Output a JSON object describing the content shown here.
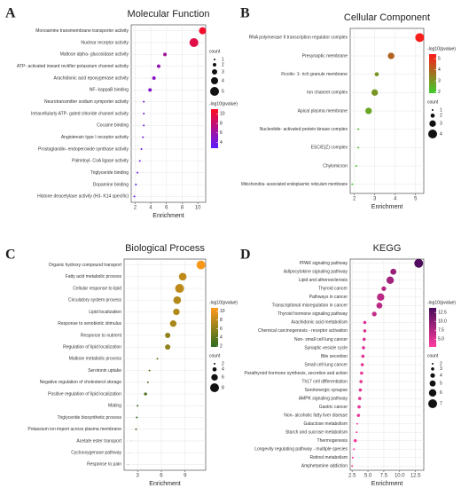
{
  "chart_data": [
    {
      "type": "bubble",
      "panel": "A",
      "title": "Molecular Function",
      "x_label": "Enrichment",
      "categories": [
        "Monoamine transmembrane transporter activity",
        "Nuclear receptor activity",
        "Maltose alpha- glucosidase activity",
        "ATP- activated inward rectifier potassium channel activity",
        "Arachidonic acid epoxygenase activity",
        "NF- kappaB binding",
        "Neurotransmitter sodium symporter activity",
        "Intracellularly ATP- gated chloride channel activity",
        "Cocaine binding",
        "Angiotensin type I receptor activity",
        "Prostaglandin- endoperoxide synthase activity",
        "Palmitoyl- CoA ligase activity",
        "Triglyceride binding",
        "Dopamine binding",
        "Histone deacetylase activity (H3- K14 specific)"
      ],
      "values": [
        10.6,
        9.5,
        5.8,
        5.0,
        4.4,
        3.9,
        3.1,
        3.1,
        3.1,
        3.0,
        2.8,
        2.6,
        2.3,
        2.1,
        1.9
      ],
      "sizes": [
        4,
        5,
        2,
        2,
        2,
        2,
        1,
        1,
        1,
        1,
        1,
        1,
        1,
        1,
        1
      ],
      "color_values": [
        10.5,
        9.5,
        6.5,
        5.5,
        5.0,
        4.8,
        4.2,
        4.1,
        4.0,
        3.9,
        3.8,
        3.6,
        3.4,
        3.2,
        3.0
      ],
      "xlim": [
        1.5,
        11
      ],
      "xticks": [
        2,
        4,
        6,
        8,
        10
      ],
      "size_title": "count",
      "size_ticks": [
        1,
        2,
        3,
        4,
        5
      ],
      "color_title": "-log10(pvalue)",
      "color_ticks": [
        4,
        6,
        8,
        10
      ],
      "color_lim": [
        2.8,
        11
      ],
      "color_range": [
        "#5a1cff",
        "#ff0a1e"
      ]
    },
    {
      "type": "bubble",
      "panel": "B",
      "title": "Cellular Component",
      "x_label": "Enrichment",
      "categories": [
        "RNA polymerase II transcription regulator complex",
        "Presynaptic membrane",
        "Ficolin- 1- rich granule membrane",
        "Ion channel complex",
        "Apical plasma membrane",
        "Nucleotide- activated protein kinase complex",
        "ESC/E(Z) complex",
        "Chylomicron",
        "Mitochondria- associated endoplasmic reticulum membrane"
      ],
      "values": [
        5.2,
        3.8,
        3.1,
        3.0,
        2.7,
        2.2,
        2.2,
        2.1,
        1.9
      ],
      "sizes": [
        4,
        3,
        2,
        3,
        3,
        1,
        1,
        1,
        1
      ],
      "color_values": [
        5.3,
        4.0,
        3.0,
        3.0,
        2.7,
        2.3,
        2.2,
        2.1,
        2.0
      ],
      "xlim": [
        1.8,
        5.4
      ],
      "xticks": [
        2,
        3,
        4,
        5
      ],
      "size_title": "count",
      "size_ticks": [
        1,
        2,
        3,
        4
      ],
      "color_title": "-log10(pvalue)",
      "color_ticks": [
        2,
        3,
        4,
        5
      ],
      "color_lim": [
        1.9,
        5.4
      ],
      "color_range": [
        "#3ccf2a",
        "#ff1a1a"
      ]
    },
    {
      "type": "bubble",
      "panel": "C",
      "title": "Biological Process",
      "x_label": "Enrichment",
      "categories": [
        "Organic hydroxy compound transport",
        "Fatty acid metabolic process",
        "Cellular response to lipid",
        "Circulatory system process",
        "Lipid localization",
        "Response to xenobiotic stimulus",
        "Response to nutrient",
        "Regulation of lipid localization",
        "Maltose metabolic process",
        "Serotonin uptake",
        "Negative regulation of cholesterol storage",
        "Positive regulation of lipid localization",
        "Mating",
        "Triglyceride biosynthetic process",
        "Potassium ion import across plasma membrane",
        "Acetate ester transport",
        "Cyclooxygenase pathway",
        "Response to pain"
      ],
      "values": [
        11.0,
        8.7,
        8.3,
        8.0,
        7.9,
        7.5,
        6.8,
        6.8,
        5.5,
        4.5,
        4.3,
        4.0,
        3.0,
        2.9,
        2.8,
        2.2,
        2.0,
        1.8
      ],
      "sizes": [
        8,
        7,
        8,
        7,
        6,
        6,
        5,
        5,
        2,
        2,
        2,
        3,
        2,
        2,
        2,
        1,
        1,
        1
      ],
      "color_values": [
        10.5,
        8.0,
        8.0,
        7.5,
        7.5,
        7.0,
        6.0,
        6.0,
        4.0,
        3.5,
        3.3,
        3.0,
        2.5,
        2.4,
        2.3,
        2.1,
        2.0,
        1.9
      ],
      "xlim": [
        1.3,
        11.6
      ],
      "xticks": [
        3,
        6,
        9
      ],
      "size_title": "count",
      "size_ticks": [
        2,
        4,
        6,
        8
      ],
      "color_title": "-log10(pvalue)",
      "color_ticks": [
        2,
        4,
        6,
        8,
        10
      ],
      "color_lim": [
        1.8,
        10.8
      ],
      "color_range": [
        "#2e6b1e",
        "#ff9a1a"
      ]
    },
    {
      "type": "bubble",
      "panel": "D",
      "title": "KEGG",
      "x_label": "Enrichment",
      "categories": [
        "PPAR signaling pathway",
        "Adipocytokine signaling pathway",
        "Lipid and atherosclerosis",
        "Thyroid cancer",
        "Pathways in cancer",
        "Transcriptional misregulation in cancer",
        "Thyroid hormone signaling pathway",
        "Arachidonic acid metabolism",
        "Chemical carcinogenesis - receptor activation",
        "Non- small cell lung cancer",
        "Synaptic vesicle cycle",
        "Bile secretion",
        "Small cell lung cancer",
        "Parathyroid hormone synthesis, secretion and action",
        "Th17 cell differentiation",
        "Serotonergic synapse",
        "AMPK signaling pathway",
        "Gastric cancer",
        "Non- alcoholic fatty liver disease",
        "Galactose metabolism",
        "Starch and sucrose metabolism",
        "Thermogenesis",
        "Longevity regulating pathway - multiple species",
        "Retinol metabolism",
        "Amphetamine addiction"
      ],
      "values": [
        13.0,
        9.0,
        8.5,
        7.5,
        7.0,
        6.8,
        6.0,
        4.5,
        4.5,
        4.4,
        4.3,
        4.2,
        4.1,
        4.0,
        3.9,
        3.8,
        3.7,
        3.6,
        3.5,
        3.3,
        3.2,
        3.0,
        2.8,
        2.6,
        2.5
      ],
      "sizes": [
        7,
        5,
        6,
        4,
        6,
        5,
        4,
        3,
        3,
        3,
        3,
        3,
        3,
        3,
        3,
        3,
        3,
        3,
        3,
        2,
        2,
        3,
        2,
        2,
        2
      ],
      "color_values": [
        13.5,
        9.0,
        8.5,
        7.5,
        7.0,
        7.0,
        6.5,
        5.0,
        5.0,
        5.0,
        4.8,
        4.7,
        4.6,
        4.5,
        4.4,
        4.3,
        4.2,
        4.1,
        4.0,
        3.5,
        3.4,
        3.5,
        3.2,
        3.0,
        2.9
      ],
      "xlim": [
        2.2,
        13.8
      ],
      "xticks": [
        {
          "value": 2.5,
          "label": "2.5"
        },
        {
          "value": 5,
          "label": "5.0"
        },
        {
          "value": 7.5,
          "label": "7.5"
        },
        {
          "value": 10,
          "label": "10.0"
        },
        {
          "value": 12.5,
          "label": "12.5"
        }
      ],
      "size_title": "count",
      "size_ticks": [
        2,
        3,
        4,
        5,
        6,
        7
      ],
      "color_title": "-log10(pvalue)",
      "color_ticks": [
        {
          "value": 5,
          "label": "5.0"
        },
        {
          "value": 7.5,
          "label": "7.5"
        },
        {
          "value": 10,
          "label": "10.0"
        },
        {
          "value": 12.5,
          "label": "12.5"
        }
      ],
      "color_lim": [
        2.8,
        13.8
      ],
      "color_range": [
        "#ff3da0",
        "#4a0a5a"
      ]
    }
  ]
}
